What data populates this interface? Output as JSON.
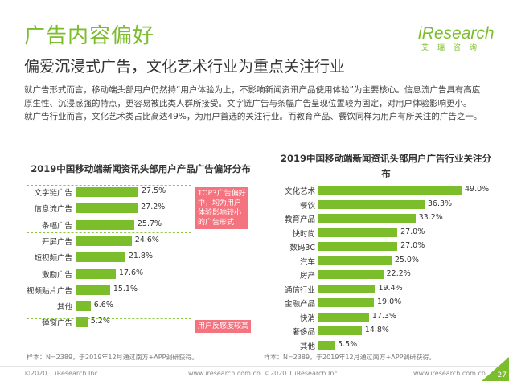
{
  "header": {
    "title": "广告内容偏好",
    "logo_text": "iResearch",
    "logo_sub": "艾瑞咨询"
  },
  "subtitle": "偏爱沉浸式广告，文化艺术行业为重点关注行业",
  "body": {
    "p1": "就广告形式而言，移动端头部用户仍然持“用户体验为上，不影响新闻资讯产品使用体验”为主要核心。信息流广告具有高度原生性、沉浸感强的特点，更容易被此类人群所接受。文字链广告与条幅广告呈现位置较为固定，对用户体验影响更小。",
    "p2": "就广告行业而言，文化艺术类占比高达49%，为用户首选的关注行业。而教育产品、餐饮同样为用户有所关注的广告之一。"
  },
  "chart_data": [
    {
      "type": "bar",
      "orientation": "horizontal",
      "title": "2019中国移动端新闻资讯头部用户产品广告偏好分布",
      "categories": [
        "文字链广告",
        "信息流广告",
        "条幅广告",
        "开屏广告",
        "短视频广告",
        "激励广告",
        "视频贴片广告",
        "其他",
        "弹窗广告"
      ],
      "values": [
        27.5,
        27.2,
        25.7,
        24.6,
        21.8,
        17.6,
        15.1,
        6.6,
        5.2
      ],
      "labels": [
        "27.5%",
        "27.2%",
        "25.7%",
        "24.6%",
        "21.8%",
        "17.6%",
        "15.1%",
        "6.6%",
        "5.2%"
      ],
      "annotations": [
        "TOP3广告偏好中，均为用户体验影响较小的广告形式",
        "用户反感度较高"
      ],
      "source": "样本：N=2389，于2019年12月通过南方+APP调研获得。"
    },
    {
      "type": "bar",
      "orientation": "horizontal",
      "title": "2019中国移动端新闻资讯头部用户广告行业关注分布",
      "categories": [
        "文化艺术",
        "餐饮",
        "教育产品",
        "快时尚",
        "数码3C",
        "汽车",
        "房产",
        "通信行业",
        "金融产品",
        "快消",
        "奢侈品",
        "其他"
      ],
      "values": [
        49.0,
        36.3,
        33.2,
        27.0,
        27.0,
        25.0,
        22.2,
        19.4,
        19.0,
        17.3,
        14.8,
        5.5
      ],
      "labels": [
        "49.0%",
        "36.3%",
        "33.2%",
        "27.0%",
        "27.0%",
        "25.0%",
        "22.2%",
        "19.4%",
        "19.0%",
        "17.3%",
        "14.8%",
        "5.5%"
      ],
      "source": "样本：N=2389，于2019年12月通过南方+APP调研获得。"
    }
  ],
  "colors": {
    "accent": "#7cbd2c",
    "note": "#f4737e"
  },
  "footer": {
    "left1": "©2020.1 iResearch Inc.",
    "right1": "www.iresearch.com.cn",
    "left2": "©2020.1 iResearch Inc.",
    "right2": "www.iresearch.com.cn",
    "page": "27"
  }
}
